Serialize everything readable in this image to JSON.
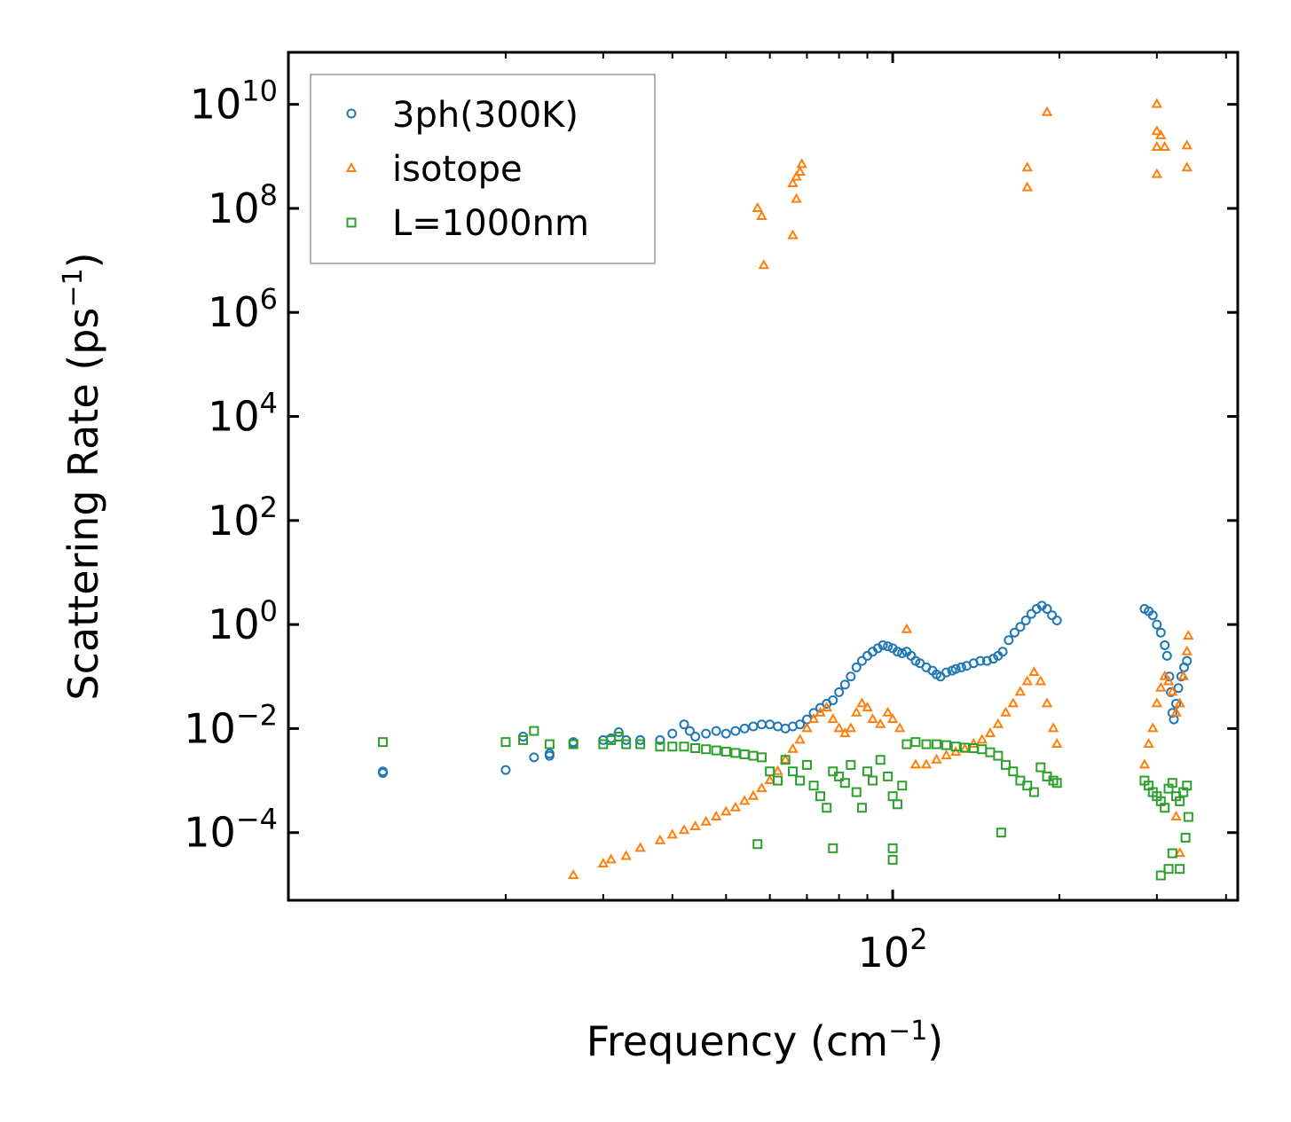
{
  "chart_data": {
    "type": "scatter",
    "xscale": "log",
    "yscale": "log",
    "xlabel": "Frequency (cm",
    "xlabel_sup": "−1",
    "xlabel_end": ")",
    "ylabel": "Scattering Rate (ps",
    "ylabel_sup": "−1",
    "ylabel_end": ")",
    "xlim": [
      8.1,
      420
    ],
    "ylim": [
      5e-06,
      100000000000.0
    ],
    "x_ticks": [
      {
        "value": 100,
        "base": "10",
        "exp": "2"
      }
    ],
    "x_minor_ticks": [
      20,
      30,
      40,
      50,
      60,
      70,
      80,
      90,
      200,
      300,
      400
    ],
    "y_ticks": [
      {
        "value": 0.0001,
        "base": "10",
        "exp": "−4"
      },
      {
        "value": 0.01,
        "base": "10",
        "exp": "−2"
      },
      {
        "value": 1,
        "base": "10",
        "exp": "0"
      },
      {
        "value": 100.0,
        "base": "10",
        "exp": "2"
      },
      {
        "value": 10000.0,
        "base": "10",
        "exp": "4"
      },
      {
        "value": 1000000.0,
        "base": "10",
        "exp": "6"
      },
      {
        "value": 100000000.0,
        "base": "10",
        "exp": "8"
      },
      {
        "value": 10000000000.0,
        "base": "10",
        "exp": "10"
      }
    ],
    "legend_position": "top-left",
    "series": [
      {
        "name": "3ph(300K)",
        "marker": "circle",
        "color": "#1f77b4",
        "points": [
          [
            12,
            0.0015
          ],
          [
            12,
            0.0014
          ],
          [
            20,
            0.0016
          ],
          [
            21.5,
            0.007
          ],
          [
            22.5,
            0.0028
          ],
          [
            24,
            0.003
          ],
          [
            24,
            0.0033
          ],
          [
            26.5,
            0.0055
          ],
          [
            26.5,
            0.0052
          ],
          [
            30,
            0.006
          ],
          [
            31,
            0.0065
          ],
          [
            32,
            0.0085
          ],
          [
            33,
            0.006
          ],
          [
            35,
            0.006
          ],
          [
            38,
            0.006
          ],
          [
            40,
            0.008
          ],
          [
            42,
            0.012
          ],
          [
            43,
            0.009
          ],
          [
            44,
            0.007
          ],
          [
            46,
            0.008
          ],
          [
            48,
            0.009
          ],
          [
            50,
            0.008
          ],
          [
            52,
            0.009
          ],
          [
            54,
            0.01
          ],
          [
            56,
            0.011
          ],
          [
            58,
            0.012
          ],
          [
            60,
            0.012
          ],
          [
            62,
            0.011
          ],
          [
            64,
            0.01
          ],
          [
            66,
            0.011
          ],
          [
            68,
            0.012
          ],
          [
            70,
            0.015
          ],
          [
            72,
            0.02
          ],
          [
            74,
            0.025
          ],
          [
            76,
            0.03
          ],
          [
            78,
            0.035
          ],
          [
            80,
            0.05
          ],
          [
            82,
            0.07
          ],
          [
            84,
            0.1
          ],
          [
            86,
            0.15
          ],
          [
            88,
            0.2
          ],
          [
            90,
            0.25
          ],
          [
            92,
            0.3
          ],
          [
            94,
            0.35
          ],
          [
            96,
            0.4
          ],
          [
            98,
            0.38
          ],
          [
            100,
            0.35
          ],
          [
            102,
            0.3
          ],
          [
            104,
            0.28
          ],
          [
            106,
            0.3
          ],
          [
            108,
            0.25
          ],
          [
            110,
            0.2
          ],
          [
            112,
            0.18
          ],
          [
            115,
            0.15
          ],
          [
            118,
            0.13
          ],
          [
            120,
            0.11
          ],
          [
            122,
            0.1
          ],
          [
            125,
            0.12
          ],
          [
            128,
            0.13
          ],
          [
            130,
            0.14
          ],
          [
            133,
            0.15
          ],
          [
            136,
            0.16
          ],
          [
            140,
            0.18
          ],
          [
            144,
            0.2
          ],
          [
            148,
            0.2
          ],
          [
            152,
            0.22
          ],
          [
            155,
            0.25
          ],
          [
            158,
            0.3
          ],
          [
            162,
            0.5
          ],
          [
            166,
            0.7
          ],
          [
            170,
            0.9
          ],
          [
            174,
            1.2
          ],
          [
            178,
            1.6
          ],
          [
            182,
            2.0
          ],
          [
            186,
            2.3
          ],
          [
            190,
            2.0
          ],
          [
            194,
            1.5
          ],
          [
            198,
            1.2
          ],
          [
            285,
            2.0
          ],
          [
            290,
            1.8
          ],
          [
            295,
            1.5
          ],
          [
            300,
            1.0
          ],
          [
            305,
            0.7
          ],
          [
            310,
            0.4
          ],
          [
            313,
            0.25
          ],
          [
            316,
            0.1
          ],
          [
            318,
            0.05
          ],
          [
            320,
            0.02
          ],
          [
            322,
            0.015
          ],
          [
            325,
            0.03
          ],
          [
            328,
            0.06
          ],
          [
            332,
            0.1
          ],
          [
            336,
            0.15
          ],
          [
            340,
            0.2
          ]
        ]
      },
      {
        "name": "isotope",
        "marker": "triangle",
        "color": "#ff7f0e",
        "points": [
          [
            26.5,
            1.5e-05
          ],
          [
            30,
            2.5e-05
          ],
          [
            31,
            3e-05
          ],
          [
            33,
            3.5e-05
          ],
          [
            35,
            5e-05
          ],
          [
            38,
            7e-05
          ],
          [
            40,
            9e-05
          ],
          [
            42,
            0.00011
          ],
          [
            44,
            0.00013
          ],
          [
            46,
            0.00016
          ],
          [
            48,
            0.0002
          ],
          [
            50,
            0.00025
          ],
          [
            52,
            0.0003
          ],
          [
            54,
            0.0004
          ],
          [
            56,
            0.0005
          ],
          [
            58,
            0.0007
          ],
          [
            60,
            0.001
          ],
          [
            62,
            0.0015
          ],
          [
            64,
            0.0025
          ],
          [
            66,
            0.004
          ],
          [
            68,
            0.006
          ],
          [
            70,
            0.01
          ],
          [
            72,
            0.015
          ],
          [
            74,
            0.02
          ],
          [
            76,
            0.025
          ],
          [
            78,
            0.015
          ],
          [
            80,
            0.01
          ],
          [
            82,
            0.008
          ],
          [
            84,
            0.01
          ],
          [
            86,
            0.02
          ],
          [
            88,
            0.03
          ],
          [
            90,
            0.025
          ],
          [
            92,
            0.015
          ],
          [
            95,
            0.012
          ],
          [
            98,
            0.02
          ],
          [
            100,
            0.015
          ],
          [
            103,
            0.01
          ],
          [
            106,
            0.8
          ],
          [
            110,
            0.002
          ],
          [
            115,
            0.002
          ],
          [
            120,
            0.0025
          ],
          [
            125,
            0.003
          ],
          [
            130,
            0.0035
          ],
          [
            135,
            0.004
          ],
          [
            140,
            0.005
          ],
          [
            145,
            0.006
          ],
          [
            150,
            0.008
          ],
          [
            155,
            0.012
          ],
          [
            160,
            0.02
          ],
          [
            165,
            0.03
          ],
          [
            170,
            0.05
          ],
          [
            175,
            0.08
          ],
          [
            180,
            0.12
          ],
          [
            185,
            0.08
          ],
          [
            190,
            0.03
          ],
          [
            195,
            0.01
          ],
          [
            198,
            0.005
          ],
          [
            285,
            0.002
          ],
          [
            290,
            0.005
          ],
          [
            295,
            0.01
          ],
          [
            300,
            0.03
          ],
          [
            305,
            0.06
          ],
          [
            310,
            0.1
          ],
          [
            315,
            0.08
          ],
          [
            320,
            0.05
          ],
          [
            325,
            0.02
          ],
          [
            330,
            0.03
          ],
          [
            335,
            0.1
          ],
          [
            340,
            0.3
          ],
          [
            342,
            0.6
          ],
          [
            330,
            4e-05
          ],
          [
            325,
            0.0002
          ],
          [
            57,
            100000000.0
          ],
          [
            58,
            70000000.0
          ],
          [
            58.5,
            8000000.0
          ],
          [
            66,
            30000000.0
          ],
          [
            66,
            300000000.0
          ],
          [
            67,
            400000000.0
          ],
          [
            68,
            500000000.0
          ],
          [
            68.5,
            700000000.0
          ],
          [
            67,
            150000000.0
          ],
          [
            175,
            250000000.0
          ],
          [
            175,
            600000000.0
          ],
          [
            190,
            7000000000.0
          ],
          [
            300,
            10000000000.0
          ],
          [
            300,
            3000000000.0
          ],
          [
            300,
            1500000000.0
          ],
          [
            300,
            450000000.0
          ],
          [
            305,
            2500000000.0
          ],
          [
            310,
            1500000000.0
          ],
          [
            340,
            1600000000.0
          ],
          [
            340,
            600000000.0
          ]
        ]
      },
      {
        "name": "L=1000nm",
        "marker": "square",
        "color": "#2ca02c",
        "points": [
          [
            12,
            0.0055
          ],
          [
            20,
            0.0055
          ],
          [
            21.5,
            0.006
          ],
          [
            22.5,
            0.009
          ],
          [
            24,
            0.005
          ],
          [
            26.5,
            0.005
          ],
          [
            30,
            0.005
          ],
          [
            31,
            0.006
          ],
          [
            32,
            0.007
          ],
          [
            33,
            0.005
          ],
          [
            35,
            0.005
          ],
          [
            38,
            0.0045
          ],
          [
            40,
            0.0045
          ],
          [
            42,
            0.0045
          ],
          [
            44,
            0.0042
          ],
          [
            46,
            0.004
          ],
          [
            48,
            0.0038
          ],
          [
            50,
            0.0036
          ],
          [
            52,
            0.0034
          ],
          [
            54,
            0.0032
          ],
          [
            56,
            0.003
          ],
          [
            58,
            0.0028
          ],
          [
            60,
            0.0015
          ],
          [
            62,
            0.001
          ],
          [
            64,
            0.0025
          ],
          [
            66,
            0.0015
          ],
          [
            68,
            0.001
          ],
          [
            70,
            0.002
          ],
          [
            72,
            0.0008
          ],
          [
            74,
            0.0005
          ],
          [
            76,
            0.0003
          ],
          [
            78,
            0.0015
          ],
          [
            80,
            0.0012
          ],
          [
            82,
            0.0009
          ],
          [
            84,
            0.002
          ],
          [
            86,
            0.0006
          ],
          [
            88,
            0.0003
          ],
          [
            90,
            0.0015
          ],
          [
            92,
            0.001
          ],
          [
            95,
            0.0025
          ],
          [
            98,
            0.0012
          ],
          [
            100,
            0.0005
          ],
          [
            102,
            0.00035
          ],
          [
            104,
            0.0008
          ],
          [
            106,
            0.005
          ],
          [
            110,
            0.0055
          ],
          [
            115,
            0.005
          ],
          [
            120,
            0.005
          ],
          [
            125,
            0.0048
          ],
          [
            130,
            0.0045
          ],
          [
            135,
            0.0043
          ],
          [
            140,
            0.0042
          ],
          [
            145,
            0.004
          ],
          [
            150,
            0.0035
          ],
          [
            155,
            0.003
          ],
          [
            160,
            0.002
          ],
          [
            165,
            0.0015
          ],
          [
            170,
            0.001
          ],
          [
            175,
            0.0008
          ],
          [
            180,
            0.0006
          ],
          [
            185,
            0.0018
          ],
          [
            190,
            0.0012
          ],
          [
            195,
            0.001
          ],
          [
            198,
            0.0009
          ],
          [
            100,
            5e-05
          ],
          [
            100,
            3e-05
          ],
          [
            57,
            6e-05
          ],
          [
            78,
            5e-05
          ],
          [
            157,
            0.0001
          ],
          [
            285,
            0.001
          ],
          [
            290,
            0.0008
          ],
          [
            295,
            0.0006
          ],
          [
            300,
            0.0005
          ],
          [
            305,
            0.0004
          ],
          [
            310,
            0.0003
          ],
          [
            315,
            0.0007
          ],
          [
            320,
            0.0009
          ],
          [
            325,
            0.0005
          ],
          [
            330,
            0.0004
          ],
          [
            335,
            0.0006
          ],
          [
            340,
            0.0008
          ],
          [
            342,
            0.0002
          ],
          [
            305,
            1.5e-05
          ],
          [
            315,
            2e-05
          ],
          [
            320,
            4e-05
          ],
          [
            330,
            2e-05
          ],
          [
            338,
            8e-05
          ]
        ]
      }
    ]
  }
}
